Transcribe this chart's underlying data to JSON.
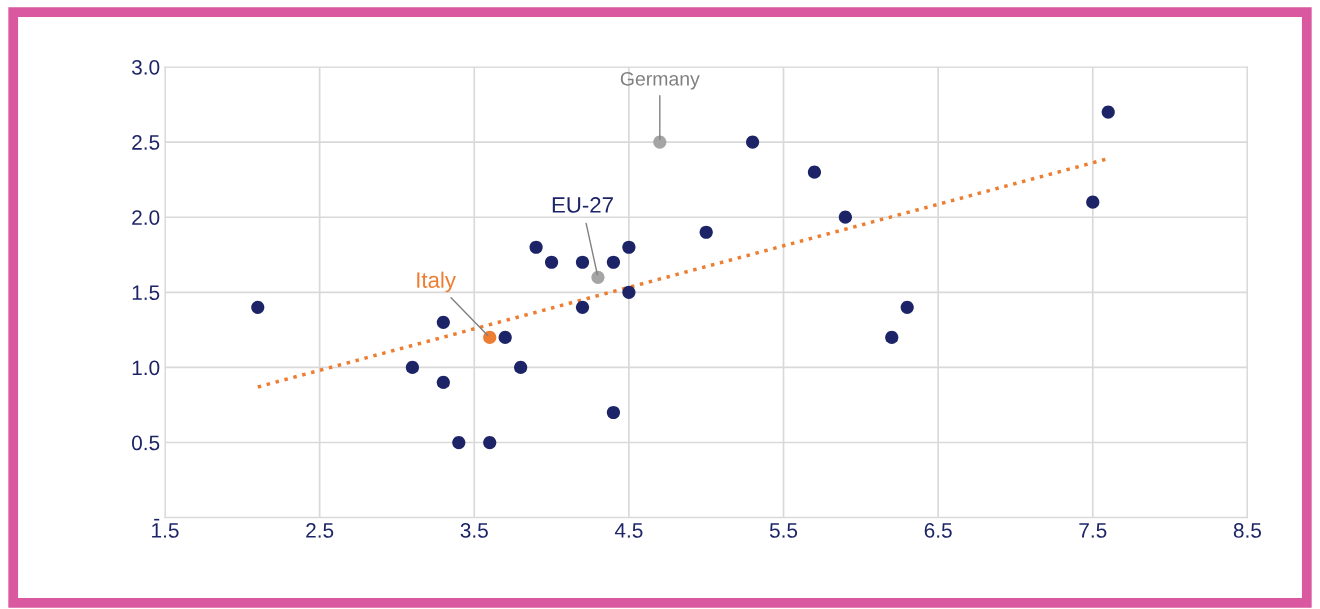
{
  "chart_data": {
    "type": "scatter",
    "xlim": [
      1.5,
      8.5
    ],
    "xticks": [
      1.5,
      2.5,
      3.5,
      4.5,
      5.5,
      6.5,
      7.5,
      8.5
    ],
    "ylim": [
      0,
      3.0
    ],
    "yticks": [
      {
        "value": 0,
        "label": "-"
      },
      {
        "value": 0.5,
        "label": "0.5"
      },
      {
        "value": 1.0,
        "label": "1.0"
      },
      {
        "value": 1.5,
        "label": "1.5"
      },
      {
        "value": 2.0,
        "label": "2.0"
      },
      {
        "value": 2.5,
        "label": "2.5"
      },
      {
        "value": 3.0,
        "label": "3.0"
      }
    ],
    "grid": true,
    "marker": "circle",
    "series": [
      {
        "color": "#1c2467",
        "x": [
          2.1,
          3.1,
          3.3,
          3.3,
          3.4,
          3.6,
          3.7,
          3.8,
          3.9,
          4.0,
          4.2,
          4.2,
          4.4,
          4.4,
          4.5,
          4.5,
          5.0,
          5.3,
          5.7,
          5.9,
          6.2,
          6.3,
          7.5,
          7.6
        ],
        "values": [
          1.4,
          1.0,
          1.3,
          0.9,
          0.5,
          0.5,
          1.2,
          1.0,
          1.8,
          1.7,
          1.7,
          1.4,
          1.7,
          0.7,
          1.8,
          1.5,
          1.9,
          2.5,
          2.3,
          2.0,
          1.2,
          1.4,
          2.1,
          2.7
        ]
      },
      {
        "color": "#ed7d31",
        "x": [
          3.6
        ],
        "values": [
          1.2
        ]
      },
      {
        "color": "#a5a5a5",
        "x": [
          4.3
        ],
        "values": [
          1.6
        ]
      },
      {
        "color": "#a5a5a5",
        "x": [
          4.7
        ],
        "values": [
          2.5
        ]
      },
      {
        "type": "line",
        "line_style": "dotted",
        "marker": "none",
        "color": "#ed7d31",
        "x": [
          2.1,
          7.6
        ],
        "values": [
          0.87,
          2.39
        ]
      }
    ],
    "annotations": [
      {
        "text": "Italy",
        "x": 3.6,
        "y": 1.2
      },
      {
        "text": "EU-27",
        "x": 4.3,
        "y": 1.6
      },
      {
        "text": "Germany",
        "x": 4.7,
        "y": 2.5
      }
    ]
  }
}
